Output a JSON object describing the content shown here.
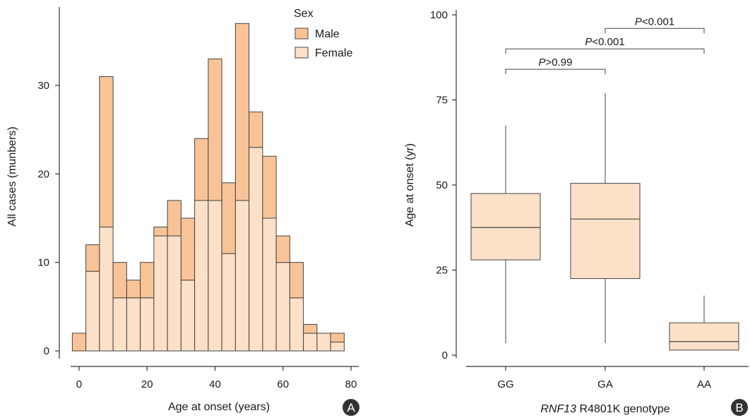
{
  "chart_data": [
    {
      "type": "bar",
      "stacked": true,
      "xlabel": "Age at onset (years)",
      "ylabel": "All cases (munbers)",
      "xlim": [
        -3,
        80
      ],
      "ylim": [
        0,
        37.5
      ],
      "xticks": [
        0,
        20,
        40,
        60,
        80
      ],
      "yticks": [
        0,
        10,
        20,
        30
      ],
      "bin_width": 4,
      "bin_starts": [
        -2,
        2,
        6,
        10,
        14,
        18,
        22,
        26,
        30,
        34,
        38,
        42,
        46,
        50,
        54,
        58,
        62,
        66,
        70,
        74
      ],
      "legend": {
        "title": "Sex",
        "position": "top-right",
        "entries": [
          "Male",
          "Female"
        ]
      },
      "series": [
        {
          "name": "Female",
          "color": "#fde0c8",
          "values": [
            0,
            9,
            14,
            6,
            6,
            6,
            13,
            13,
            8,
            17,
            17,
            11,
            17,
            23,
            15,
            10,
            6,
            2,
            2,
            1
          ]
        },
        {
          "name": "Male",
          "color": "#f8c497",
          "values": [
            2,
            3,
            17,
            4,
            2,
            4,
            1,
            4,
            7,
            7,
            16,
            8,
            20,
            4,
            7,
            3,
            4,
            1,
            0,
            1
          ]
        }
      ],
      "panel_label": "A"
    },
    {
      "type": "box",
      "xlabel_italic": "RNF13",
      "xlabel_rest": " R4801K genotype",
      "ylabel": "Age at onset (yr)",
      "ylim": [
        -2,
        101
      ],
      "yticks": [
        0,
        25,
        50,
        75,
        100
      ],
      "categories": [
        "GG",
        "GA",
        "AA"
      ],
      "color": "#fde0c8",
      "boxes": [
        {
          "label": "GG",
          "min": 3.5,
          "q1": 28,
          "median": 37.5,
          "q3": 47.5,
          "max": 67.5
        },
        {
          "label": "GA",
          "min": 3.5,
          "q1": 22.5,
          "median": 40,
          "q3": 50.5,
          "max": 77
        },
        {
          "label": "AA",
          "min": 1.5,
          "q1": 1.5,
          "median": 4,
          "q3": 9.5,
          "max": 17.5
        }
      ],
      "comparisons": [
        {
          "from": "GG",
          "to": "GA",
          "y": 84,
          "p_italic": "P",
          "p_rest": ">0.99"
        },
        {
          "from": "GG",
          "to": "AA",
          "y": 90,
          "p_italic": "P",
          "p_rest": "<0.001"
        },
        {
          "from": "GA",
          "to": "AA",
          "y": 96,
          "p_italic": "P",
          "p_rest": "<0.001"
        }
      ],
      "panel_label": "B"
    }
  ]
}
